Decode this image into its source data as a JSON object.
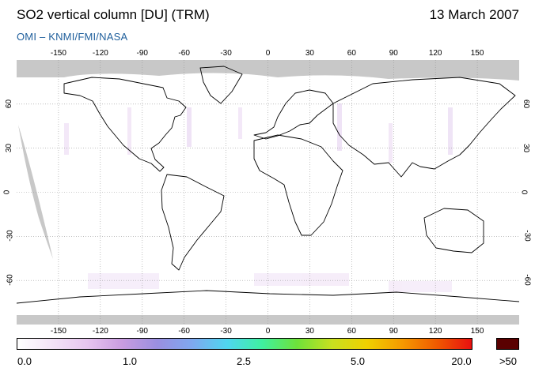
{
  "header": {
    "title": "SO2 vertical column [DU] (TRM)",
    "date": "13 March 2007",
    "subtitle": "OMI  –  KNMI/FMI/NASA"
  },
  "map": {
    "projection": "equirectangular",
    "lon_ticks": [
      "-150",
      "-120",
      "-90",
      "-60",
      "-30",
      "0",
      "30",
      "60",
      "90",
      "120",
      "150"
    ],
    "lat_ticks": [
      "60",
      "30",
      "0",
      "-30",
      "-60"
    ],
    "no_data_color": "#c8c8c8",
    "coastline_color": "#000000",
    "grid_style": "dotted"
  },
  "colorbar": {
    "labels": [
      "0.0",
      "1.0",
      "2.5",
      "5.0",
      "20.0"
    ],
    "overflow_label": ">50",
    "overflow_color": "#5a0000",
    "colors": [
      "#ffffff",
      "#f3e3f7",
      "#e7c5ef",
      "#c99ce0",
      "#9a8fe0",
      "#7fa8f0",
      "#4fd6f0",
      "#3ff0a0",
      "#6ee23a",
      "#c8e020",
      "#f0d000",
      "#f59a00",
      "#f05a00",
      "#e81010"
    ]
  }
}
